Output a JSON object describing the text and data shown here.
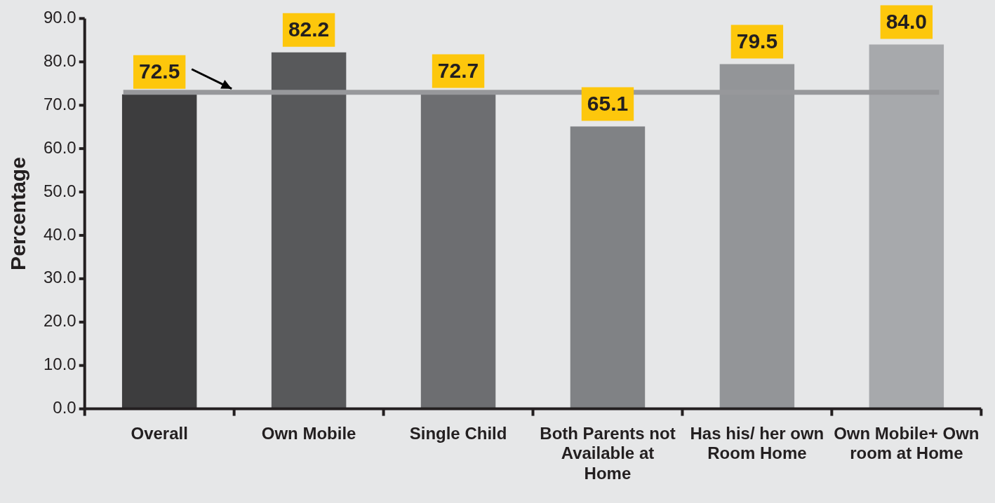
{
  "chart_data": {
    "type": "bar",
    "ylabel": "Percentage",
    "categories": [
      "Overall",
      "Own Mobile",
      "Single Child",
      "Both Parents not Available at Home",
      "Has his/ her own Room Home",
      "Own Mobile+ Own room at Home"
    ],
    "values": [
      72.5,
      82.2,
      72.7,
      65.1,
      79.5,
      84.0
    ],
    "colors": [
      "#3d3d3e",
      "#58595b",
      "#6d6e71",
      "#808285",
      "#939598",
      "#a7a9ac"
    ],
    "ylim": [
      0,
      90
    ],
    "yticks": [
      {
        "value": 0,
        "label": "0.0"
      },
      {
        "value": 10,
        "label": "10.0"
      },
      {
        "value": 20,
        "label": "20.0"
      },
      {
        "value": 30,
        "label": "30.0"
      },
      {
        "value": 40,
        "label": "40.0"
      },
      {
        "value": 50,
        "label": "50.0"
      },
      {
        "value": 60,
        "label": "60.0"
      },
      {
        "value": 70,
        "label": "70.0"
      },
      {
        "value": 80,
        "label": "80.0"
      },
      {
        "value": 90,
        "label": "90.0"
      }
    ],
    "value_labels": [
      "72.5",
      "82.2",
      "72.7",
      "65.1",
      "79.5",
      "84.0"
    ],
    "ref_lines": [
      {
        "axis": "y",
        "value": 73,
        "color": "#97989b"
      }
    ],
    "grid": false,
    "legend": false
  }
}
